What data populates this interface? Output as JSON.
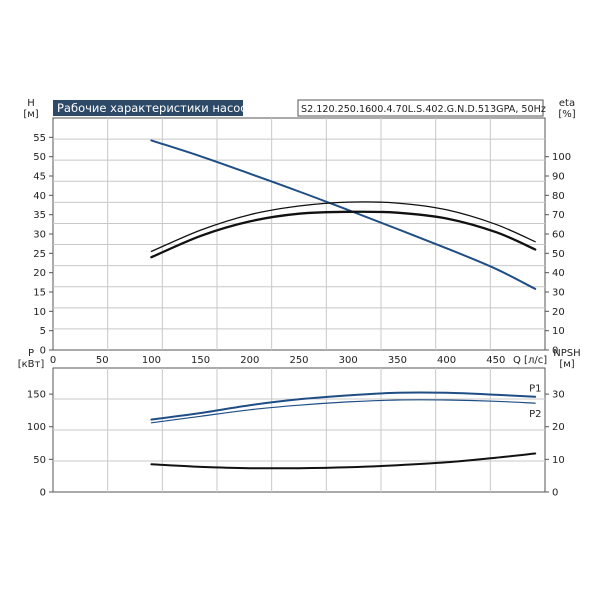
{
  "title": "Рабочие характеристики насоса",
  "model": "S2.120.250.1600.4.70L.S.402.G.N.D.513GPA, 50Hz",
  "colors": {
    "head": "#1f4e86",
    "eta": "#111111",
    "power": "#1f4e86",
    "npsh": "#111111",
    "grid": "#c8c8c8",
    "title_bg": "#2d4a68"
  },
  "chart_data": [
    {
      "type": "line",
      "name": "top",
      "x_axis": {
        "label": "Q [л/с]",
        "range": [
          0,
          500
        ],
        "ticks": [
          0,
          50,
          100,
          150,
          200,
          250,
          300,
          350,
          400,
          450
        ]
      },
      "y_left": {
        "label_line1": "H",
        "label_line2": "[м]",
        "range": [
          0,
          60
        ],
        "ticks": [
          0,
          5,
          10,
          15,
          20,
          25,
          30,
          35,
          40,
          45,
          50,
          55
        ]
      },
      "y_right": {
        "label_line1": "eta",
        "label_line2": "[%]",
        "range": [
          0,
          120
        ],
        "ticks": [
          0,
          10,
          20,
          30,
          40,
          50,
          60,
          70,
          80,
          90,
          100
        ]
      },
      "grid": true,
      "series": [
        {
          "role": "head",
          "axis": "left",
          "stroke": "#1f4e86",
          "width": 2,
          "x": [
            100,
            150,
            200,
            250,
            300,
            350,
            400,
            450,
            490
          ],
          "y": [
            54.2,
            50.1,
            45.6,
            41.0,
            36.2,
            31.3,
            26.3,
            21.0,
            15.8
          ]
        },
        {
          "role": "eta-1",
          "axis": "right",
          "stroke": "#111111",
          "width": 1.3,
          "x": [
            100,
            150,
            200,
            250,
            300,
            350,
            400,
            450,
            490
          ],
          "y": [
            51,
            62,
            70,
            74.5,
            76.5,
            76,
            72.5,
            65,
            56
          ]
        },
        {
          "role": "eta-2",
          "axis": "right",
          "stroke": "#111111",
          "width": 2.3,
          "x": [
            100,
            150,
            200,
            250,
            300,
            350,
            400,
            450,
            490
          ],
          "y": [
            48,
            59,
            66.5,
            70.5,
            71.5,
            71,
            68,
            61,
            52
          ]
        }
      ]
    },
    {
      "type": "line",
      "name": "bottom",
      "x_axis": {
        "label": "",
        "range": [
          0,
          500
        ],
        "ticks": []
      },
      "y_left": {
        "label_line1": "P",
        "label_line2": "[кВт]",
        "range": [
          0,
          190
        ],
        "ticks": [
          0,
          50,
          100,
          150
        ]
      },
      "y_right": {
        "label_line1": "NPSH",
        "label_line2": "[м]",
        "range": [
          0,
          38
        ],
        "ticks": [
          0,
          10,
          20,
          30
        ]
      },
      "grid": true,
      "series": [
        {
          "name": "P1",
          "axis": "left",
          "stroke": "#1f4e86",
          "width": 2,
          "x": [
            100,
            150,
            200,
            250,
            300,
            350,
            400,
            450,
            490
          ],
          "y": [
            111,
            121,
            133,
            142,
            148,
            152,
            152,
            149,
            146
          ]
        },
        {
          "name": "P2",
          "axis": "left",
          "stroke": "#1f4e86",
          "width": 1.2,
          "x": [
            100,
            150,
            200,
            250,
            300,
            350,
            400,
            450,
            490
          ],
          "y": [
            106,
            116,
            126,
            133,
            138,
            141,
            141,
            139,
            136
          ]
        },
        {
          "role": "npsh",
          "axis": "right",
          "stroke": "#111111",
          "width": 2,
          "x": [
            100,
            150,
            200,
            250,
            300,
            350,
            400,
            450,
            490
          ],
          "y": [
            8.5,
            7.7,
            7.3,
            7.3,
            7.6,
            8.2,
            9.1,
            10.5,
            11.8
          ]
        }
      ]
    }
  ]
}
